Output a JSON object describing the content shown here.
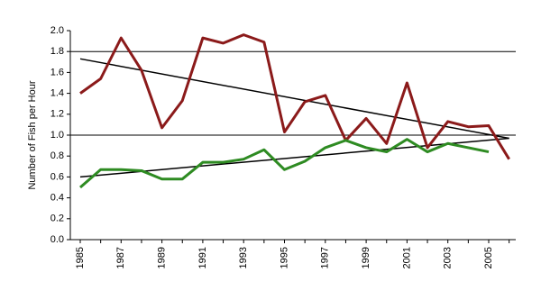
{
  "chart_data": {
    "type": "line",
    "y_label": "Number of Fish per Hour",
    "categories": [
      "1985",
      null,
      "1987",
      null,
      "1989",
      null,
      "1991",
      null,
      "1993",
      null,
      "1995",
      null,
      "1997",
      null,
      "1999",
      null,
      "2001",
      null,
      "2003",
      null,
      "2005",
      null
    ],
    "series": [
      {
        "color": "#8b1a1a",
        "values": [
          1.4,
          1.54,
          1.93,
          1.62,
          1.07,
          1.33,
          1.93,
          1.88,
          1.96,
          1.89,
          1.03,
          1.32,
          1.38,
          0.95,
          1.16,
          0.92,
          1.5,
          0.88,
          1.13,
          1.08,
          1.09,
          0.77
        ]
      },
      {
        "color": "#2e8b22",
        "values": [
          0.5,
          0.67,
          0.67,
          0.66,
          0.58,
          0.58,
          0.74,
          0.74,
          0.77,
          0.86,
          0.67,
          0.75,
          0.88,
          0.95,
          0.88,
          0.84,
          0.96,
          0.84,
          0.92,
          0.88,
          0.84,
          null
        ]
      }
    ],
    "trendlines": [
      {
        "color": "#000000",
        "values": [
          1.73,
          0.97
        ]
      },
      {
        "color": "#000000",
        "values": [
          0.6,
          0.97
        ]
      }
    ],
    "ylim": [
      0,
      2
    ],
    "yticks": [
      {
        "value": 0,
        "label": "0.0"
      },
      {
        "value": 0.2,
        "label": "0.2"
      },
      {
        "value": 0.4,
        "label": "0.4"
      },
      {
        "value": 0.6,
        "label": "0.6"
      },
      {
        "value": 0.8,
        "label": "0.8"
      },
      {
        "value": 1,
        "label": "1.0"
      },
      {
        "value": 1.2,
        "label": "1.2"
      },
      {
        "value": 1.4,
        "label": "1.4"
      },
      {
        "value": 1.6,
        "label": "1.6"
      },
      {
        "value": 1.8,
        "label": "1.8"
      },
      {
        "value": 2,
        "label": "2.0"
      }
    ],
    "gridlines": [
      1.0,
      1.8
    ]
  }
}
